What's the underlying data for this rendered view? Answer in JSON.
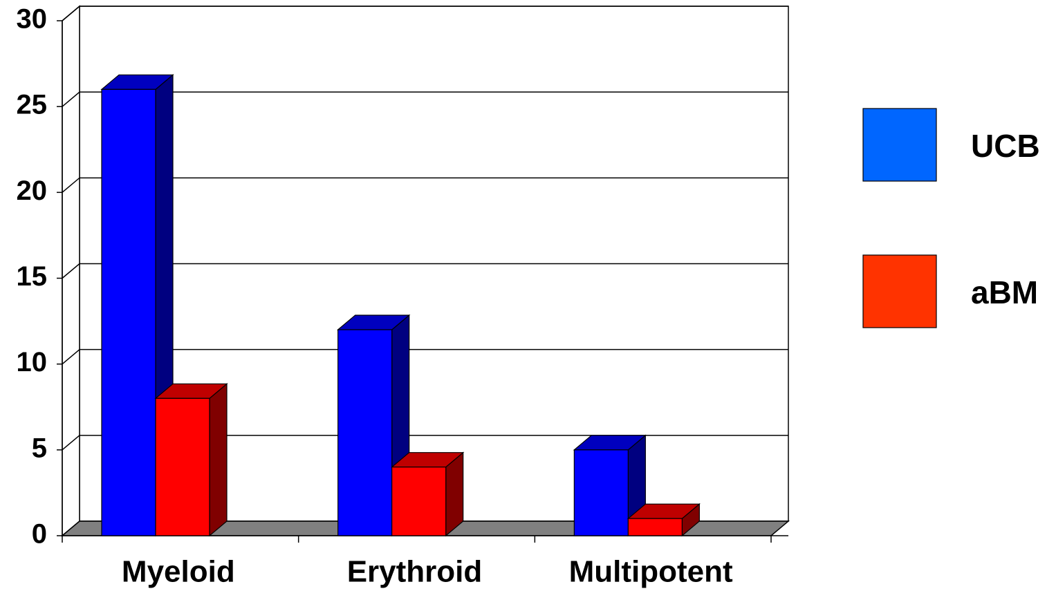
{
  "chart_data": {
    "type": "bar3d",
    "categories": [
      "Myeloid",
      "Erythroid",
      "Multipotent"
    ],
    "series": [
      {
        "name": "UCB",
        "color": "#0000ff",
        "legend_color": "#0066ff",
        "values": [
          26,
          12,
          5
        ]
      },
      {
        "name": "aBM",
        "color": "#ff0000",
        "legend_color": "#ff3300",
        "values": [
          8,
          4,
          1
        ]
      }
    ],
    "ylim": [
      0,
      30
    ],
    "yticks": [
      0,
      5,
      10,
      15,
      20,
      25,
      30
    ],
    "grid": true
  }
}
